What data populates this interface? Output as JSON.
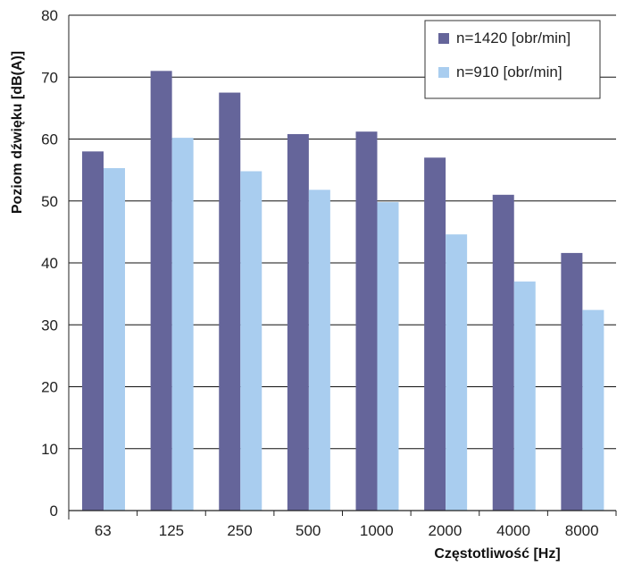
{
  "chart_data": {
    "type": "bar",
    "title": "",
    "xlabel": "Częstotliwość [Hz]",
    "ylabel": "Poziom dźwięku [dB(A)]",
    "ylim": [
      0,
      80
    ],
    "yticks": [
      0,
      10,
      20,
      30,
      40,
      50,
      60,
      70,
      80
    ],
    "grid": true,
    "legend_position": "top-right",
    "categories": [
      "63",
      "125",
      "250",
      "500",
      "1000",
      "2000",
      "4000",
      "8000"
    ],
    "series": [
      {
        "name": "n=1420 [obr/min]",
        "color": "#65659a",
        "values": [
          58,
          71,
          67.5,
          60.8,
          61.2,
          57,
          51,
          41.6
        ]
      },
      {
        "name": "n=910 [obr/min]",
        "color": "#a9cdef",
        "values": [
          55.3,
          60.2,
          54.8,
          51.8,
          49.8,
          44.6,
          37,
          32.4
        ]
      }
    ]
  }
}
